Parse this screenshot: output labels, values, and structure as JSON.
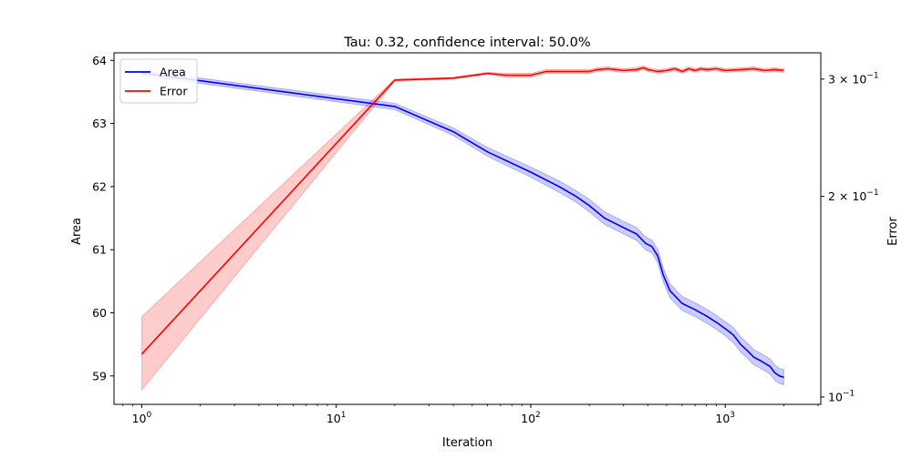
{
  "chart_data": {
    "type": "line",
    "title": "Tau: 0.32, confidence interval: 50.0%",
    "xlabel": "Iteration",
    "ylabel_left": "Area",
    "ylabel_right": "Error",
    "x_scale": "log",
    "y_right_scale": "log",
    "xlim": [
      0.72,
      3100
    ],
    "ylim_left": [
      58.55,
      64.12
    ],
    "ylim_right": [
      0.0975,
      0.3285
    ],
    "x_ticks": [
      {
        "value": 1,
        "base": "10",
        "exp": "0"
      },
      {
        "value": 10,
        "base": "10",
        "exp": "1"
      },
      {
        "value": 100,
        "base": "10",
        "exp": "2"
      },
      {
        "value": 1000,
        "base": "10",
        "exp": "3"
      }
    ],
    "y_left_ticks": [
      "59",
      "60",
      "61",
      "62",
      "63",
      "64"
    ],
    "y_right_ticks": [
      {
        "value": 0.1,
        "mantissa": "",
        "exp": "−1"
      },
      {
        "value": 0.2,
        "mantissa": "2 × ",
        "exp": "−1"
      },
      {
        "value": 0.3,
        "mantissa": "3 × ",
        "exp": "−1"
      }
    ],
    "grid": false,
    "legend_position": "top-left",
    "series": [
      {
        "name": "Area",
        "axis": "left",
        "color": "#0000ff",
        "band_color": "#0000ff",
        "x": [
          1,
          20,
          40,
          60,
          100,
          140,
          170,
          200,
          240,
          300,
          350,
          390,
          420,
          450,
          480,
          520,
          600,
          700,
          800,
          900,
          1000,
          1100,
          1200,
          1300,
          1400,
          1500,
          1600,
          1700,
          1800,
          1900,
          2000
        ],
        "y": [
          63.8,
          63.27,
          62.87,
          62.55,
          62.23,
          62.0,
          61.85,
          61.7,
          61.5,
          61.35,
          61.25,
          61.1,
          61.05,
          60.9,
          60.6,
          60.35,
          60.15,
          60.05,
          59.95,
          59.85,
          59.75,
          59.65,
          59.5,
          59.4,
          59.3,
          59.25,
          59.2,
          59.15,
          59.05,
          59.0,
          58.98
        ],
        "band_half_width": [
          0.04,
          0.05,
          0.06,
          0.07,
          0.08,
          0.09,
          0.09,
          0.1,
          0.1,
          0.1,
          0.1,
          0.1,
          0.1,
          0.11,
          0.11,
          0.11,
          0.11,
          0.11,
          0.11,
          0.11,
          0.11,
          0.12,
          0.12,
          0.12,
          0.12,
          0.12,
          0.12,
          0.12,
          0.12,
          0.12,
          0.12
        ]
      },
      {
        "name": "Error",
        "axis": "right",
        "color": "#ff0000",
        "band_color": "#ff0000",
        "x": [
          1,
          20,
          40,
          60,
          75,
          100,
          120,
          150,
          200,
          220,
          250,
          300,
          350,
          380,
          400,
          450,
          500,
          550,
          600,
          650,
          700,
          750,
          800,
          900,
          1000,
          1200,
          1400,
          1600,
          1800,
          2000
        ],
        "y": [
          0.116,
          0.299,
          0.301,
          0.306,
          0.304,
          0.304,
          0.308,
          0.308,
          0.308,
          0.31,
          0.311,
          0.309,
          0.31,
          0.312,
          0.31,
          0.308,
          0.309,
          0.311,
          0.308,
          0.311,
          0.309,
          0.311,
          0.31,
          0.311,
          0.309,
          0.31,
          0.311,
          0.309,
          0.31,
          0.309
        ],
        "band_low": [
          0.1025,
          0.298,
          0.3,
          0.305,
          0.302,
          0.302,
          0.306,
          0.306,
          0.306,
          0.308,
          0.309,
          0.307,
          0.308,
          0.31,
          0.308,
          0.306,
          0.307,
          0.309,
          0.306,
          0.309,
          0.307,
          0.309,
          0.308,
          0.309,
          0.307,
          0.308,
          0.309,
          0.307,
          0.308,
          0.307
        ],
        "band_high": [
          0.132,
          0.3,
          0.302,
          0.307,
          0.306,
          0.306,
          0.31,
          0.31,
          0.31,
          0.312,
          0.313,
          0.311,
          0.312,
          0.314,
          0.312,
          0.31,
          0.311,
          0.313,
          0.31,
          0.313,
          0.311,
          0.313,
          0.312,
          0.313,
          0.311,
          0.312,
          0.313,
          0.311,
          0.312,
          0.311
        ]
      }
    ]
  }
}
